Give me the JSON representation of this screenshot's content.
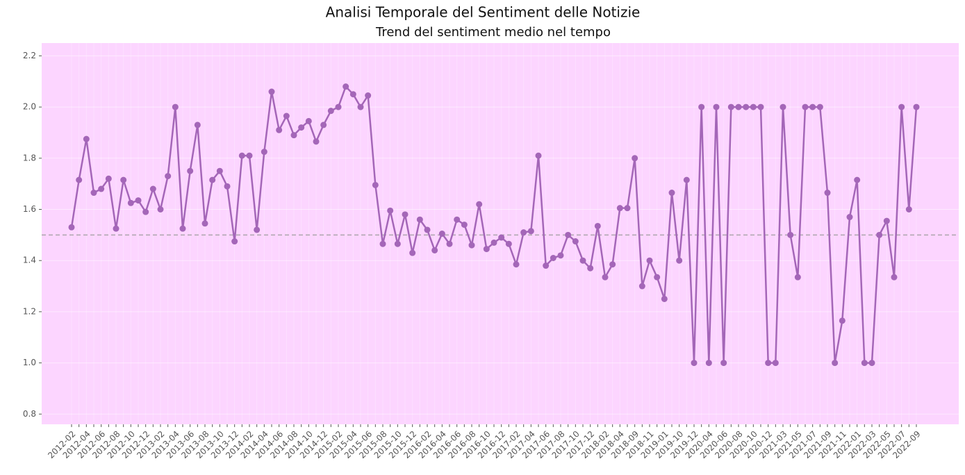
{
  "chart_data": {
    "type": "line",
    "title": "Analisi Temporale del Sentiment delle Notizie",
    "subtitle": "Trend del sentiment medio nel tempo",
    "categories": [
      "2012-02",
      null,
      "2012-04",
      null,
      "2012-06",
      null,
      "2012-08",
      null,
      "2012-10",
      null,
      "2012-12",
      null,
      "2013-02",
      null,
      "2013-04",
      null,
      "2013-06",
      null,
      "2013-08",
      null,
      "2013-10",
      null,
      "2013-12",
      null,
      "2014-02",
      null,
      "2014-04",
      null,
      "2014-06",
      null,
      "2014-08",
      null,
      "2014-10",
      null,
      "2014-12",
      null,
      "2015-02",
      null,
      "2015-04",
      null,
      "2015-06",
      null,
      "2015-08",
      null,
      "2015-10",
      null,
      "2015-12",
      null,
      "2016-02",
      null,
      "2016-04",
      null,
      "2016-06",
      null,
      "2016-08",
      null,
      "2016-10",
      null,
      "2016-12",
      null,
      "2017-02",
      null,
      "2017-04",
      null,
      "2017-06",
      null,
      "2017-08",
      null,
      "2017-10",
      null,
      "2017-12",
      null,
      "2018-02",
      null,
      "2018-04",
      null,
      "2018-09",
      null,
      "2018-11",
      null,
      "2019-01",
      null,
      "2019-10",
      null,
      "2019-12",
      null,
      "2020-04",
      null,
      "2020-06",
      null,
      "2020-08",
      null,
      "2020-10",
      null,
      "2020-12",
      null,
      "2021-03",
      null,
      "2021-05",
      null,
      "2021-07",
      null,
      "2021-09",
      null,
      "2021-11",
      null,
      "2022-01",
      null,
      "2022-03",
      null,
      "2022-05",
      null,
      "2022-07",
      null,
      "2022-09"
    ],
    "series": [
      {
        "color": "#a466b8",
        "values": [
          1.53,
          1.715,
          1.875,
          1.665,
          1.68,
          1.72,
          1.525,
          1.715,
          1.625,
          1.635,
          1.59,
          1.68,
          1.6,
          1.73,
          2.0,
          1.525,
          1.75,
          1.93,
          1.545,
          1.715,
          1.75,
          1.69,
          1.475,
          1.81,
          1.81,
          1.52,
          1.825,
          2.06,
          1.91,
          1.965,
          1.89,
          1.92,
          1.945,
          1.865,
          1.93,
          1.985,
          2.0,
          2.08,
          2.05,
          2.0,
          2.045,
          1.695,
          1.465,
          1.595,
          1.465,
          1.58,
          1.43,
          1.56,
          1.52,
          1.44,
          1.505,
          1.465,
          1.56,
          1.54,
          1.46,
          1.62,
          1.445,
          1.47,
          1.49,
          1.465,
          1.385,
          1.51,
          1.515,
          1.81,
          1.38,
          1.41,
          1.42,
          1.5,
          1.475,
          1.4,
          1.37,
          1.535,
          1.335,
          1.385,
          1.605,
          1.605,
          1.8,
          1.3,
          1.4,
          1.335,
          1.25,
          1.665,
          1.4,
          1.715,
          1.0,
          2.0,
          1.0,
          2.0,
          1.0,
          2.0,
          2.0,
          2.0,
          2.0,
          2.0,
          1.0,
          1.0,
          2.0,
          1.5,
          1.335,
          2.0,
          2.0,
          2.0,
          1.665,
          1.0,
          1.165,
          1.57,
          1.715,
          1.0,
          1.0,
          1.5,
          1.555,
          1.335,
          2.0,
          1.6,
          2.0
        ]
      }
    ],
    "reference_line": 1.5,
    "ylim": [
      0.76,
      2.25
    ],
    "yticks": [
      0.8,
      {
        "value": 1.0,
        "label": "1.0"
      },
      1.2,
      1.4,
      1.6,
      1.8,
      {
        "value": 2.0,
        "label": "2.0"
      },
      2.2
    ],
    "grid": true,
    "background": "#fcd5ff"
  }
}
